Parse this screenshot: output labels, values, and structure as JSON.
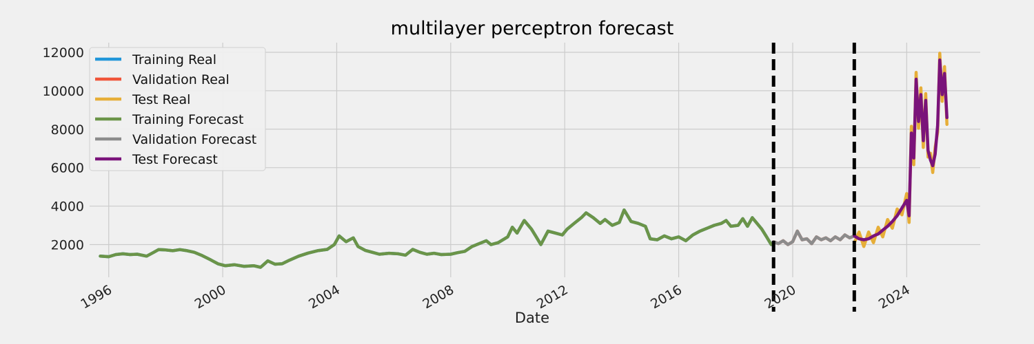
{
  "chart_data": {
    "type": "line",
    "title": "multilayer perceptron forecast",
    "xlabel": "Date",
    "ylabel": "",
    "xlim": [
      "1995-05-01",
      "2026-08-01"
    ],
    "ylim": [
      300,
      12500
    ],
    "xticks": [
      "1996",
      "2000",
      "2004",
      "2008",
      "2012",
      "2016",
      "2020",
      "2024"
    ],
    "yticks": [
      2000,
      4000,
      6000,
      8000,
      10000,
      12000
    ],
    "grid": true,
    "legend_position": "top-left",
    "vlines": [
      "2019-05-01",
      "2022-03-01"
    ],
    "series": [
      {
        "name": "Training Real",
        "color": "#2196d9",
        "key": "train"
      },
      {
        "name": "Validation Real",
        "color": "#f0553a",
        "key": "val"
      },
      {
        "name": "Test Real",
        "color": "#e6ae38",
        "key": "test"
      },
      {
        "name": "Training Forecast",
        "color": "#6b9448",
        "key": "train"
      },
      {
        "name": "Validation Forecast",
        "color": "#8c8c8c",
        "key": "val"
      },
      {
        "name": "Test Forecast",
        "color": "#7a137a",
        "key": "test"
      }
    ],
    "data": {
      "train": [
        [
          "1995-09-15",
          1400
        ],
        [
          "1996-01-01",
          1370
        ],
        [
          "1996-04-01",
          1480
        ],
        [
          "1996-07-01",
          1520
        ],
        [
          "1996-10-01",
          1480
        ],
        [
          "1997-01-01",
          1500
        ],
        [
          "1997-05-01",
          1400
        ],
        [
          "1997-08-01",
          1600
        ],
        [
          "1997-10-01",
          1740
        ],
        [
          "1998-01-01",
          1720
        ],
        [
          "1998-04-01",
          1680
        ],
        [
          "1998-07-01",
          1740
        ],
        [
          "1998-10-01",
          1680
        ],
        [
          "1999-01-01",
          1600
        ],
        [
          "1999-04-01",
          1450
        ],
        [
          "1999-08-01",
          1200
        ],
        [
          "1999-11-01",
          1000
        ],
        [
          "2000-02-01",
          900
        ],
        [
          "2000-06-01",
          950
        ],
        [
          "2000-10-01",
          870
        ],
        [
          "2001-02-01",
          900
        ],
        [
          "2001-05-01",
          820
        ],
        [
          "2001-08-01",
          1150
        ],
        [
          "2001-11-01",
          980
        ],
        [
          "2002-02-01",
          1000
        ],
        [
          "2002-05-01",
          1180
        ],
        [
          "2002-09-01",
          1400
        ],
        [
          "2003-01-01",
          1560
        ],
        [
          "2003-05-01",
          1680
        ],
        [
          "2003-09-01",
          1750
        ],
        [
          "2003-12-01",
          2000
        ],
        [
          "2004-02-01",
          2450
        ],
        [
          "2004-05-01",
          2150
        ],
        [
          "2004-08-01",
          2350
        ],
        [
          "2004-10-01",
          1900
        ],
        [
          "2005-01-01",
          1700
        ],
        [
          "2005-04-01",
          1600
        ],
        [
          "2005-07-01",
          1500
        ],
        [
          "2005-11-01",
          1550
        ],
        [
          "2006-03-01",
          1520
        ],
        [
          "2006-06-01",
          1450
        ],
        [
          "2006-09-01",
          1750
        ],
        [
          "2006-12-01",
          1600
        ],
        [
          "2007-03-01",
          1500
        ],
        [
          "2007-06-01",
          1550
        ],
        [
          "2007-09-01",
          1480
        ],
        [
          "2008-01-01",
          1500
        ],
        [
          "2008-04-01",
          1580
        ],
        [
          "2008-07-01",
          1650
        ],
        [
          "2008-10-01",
          1900
        ],
        [
          "2009-01-01",
          2050
        ],
        [
          "2009-04-01",
          2200
        ],
        [
          "2009-06-01",
          2000
        ],
        [
          "2009-09-01",
          2100
        ],
        [
          "2010-01-01",
          2400
        ],
        [
          "2010-03-01",
          2900
        ],
        [
          "2010-05-01",
          2600
        ],
        [
          "2010-08-01",
          3250
        ],
        [
          "2010-11-01",
          2800
        ],
        [
          "2011-01-01",
          2400
        ],
        [
          "2011-03-01",
          2000
        ],
        [
          "2011-06-01",
          2700
        ],
        [
          "2011-09-01",
          2600
        ],
        [
          "2011-12-01",
          2500
        ],
        [
          "2012-02-01",
          2800
        ],
        [
          "2012-05-01",
          3100
        ],
        [
          "2012-08-01",
          3400
        ],
        [
          "2012-10-01",
          3650
        ],
        [
          "2013-01-01",
          3400
        ],
        [
          "2013-04-01",
          3100
        ],
        [
          "2013-06-01",
          3300
        ],
        [
          "2013-09-01",
          3000
        ],
        [
          "2013-12-01",
          3150
        ],
        [
          "2014-02-01",
          3800
        ],
        [
          "2014-05-01",
          3200
        ],
        [
          "2014-08-01",
          3100
        ],
        [
          "2014-11-01",
          2950
        ],
        [
          "2015-01-01",
          2300
        ],
        [
          "2015-04-01",
          2250
        ],
        [
          "2015-07-01",
          2450
        ],
        [
          "2015-10-01",
          2300
        ],
        [
          "2016-01-01",
          2400
        ],
        [
          "2016-04-01",
          2200
        ],
        [
          "2016-07-01",
          2500
        ],
        [
          "2016-10-01",
          2700
        ],
        [
          "2017-01-01",
          2850
        ],
        [
          "2017-04-01",
          3000
        ],
        [
          "2017-07-01",
          3100
        ],
        [
          "2017-09-01",
          3250
        ],
        [
          "2017-11-01",
          2950
        ],
        [
          "2018-02-01",
          3000
        ],
        [
          "2018-04-01",
          3350
        ],
        [
          "2018-06-01",
          2950
        ],
        [
          "2018-08-01",
          3400
        ],
        [
          "2018-10-01",
          3100
        ],
        [
          "2018-12-01",
          2800
        ],
        [
          "2019-02-01",
          2400
        ],
        [
          "2019-04-01",
          2000
        ],
        [
          "2019-05-01",
          2100
        ]
      ],
      "val": [
        [
          "2019-05-01",
          2150
        ],
        [
          "2019-07-01",
          2050
        ],
        [
          "2019-09-01",
          2200
        ],
        [
          "2019-11-01",
          2000
        ],
        [
          "2020-01-01",
          2150
        ],
        [
          "2020-03-01",
          2700
        ],
        [
          "2020-05-01",
          2250
        ],
        [
          "2020-07-01",
          2300
        ],
        [
          "2020-09-01",
          2050
        ],
        [
          "2020-11-01",
          2400
        ],
        [
          "2021-01-01",
          2250
        ],
        [
          "2021-03-01",
          2350
        ],
        [
          "2021-05-01",
          2200
        ],
        [
          "2021-07-01",
          2400
        ],
        [
          "2021-09-01",
          2250
        ],
        [
          "2021-11-01",
          2500
        ],
        [
          "2022-01-01",
          2350
        ],
        [
          "2022-03-01",
          2450
        ]
      ],
      "test": [
        [
          "2022-03-01",
          2450
        ],
        [
          "2022-05-01",
          2300
        ],
        [
          "2022-07-01",
          2250
        ],
        [
          "2022-09-01",
          2300
        ],
        [
          "2022-11-01",
          2450
        ],
        [
          "2023-01-01",
          2550
        ],
        [
          "2023-03-01",
          2750
        ],
        [
          "2023-05-01",
          2950
        ],
        [
          "2023-07-01",
          3200
        ],
        [
          "2023-09-01",
          3500
        ],
        [
          "2023-11-01",
          3900
        ],
        [
          "2024-01-01",
          4300
        ],
        [
          "2024-02-01",
          3500
        ],
        [
          "2024-03-01",
          7800
        ],
        [
          "2024-04-01",
          6500
        ],
        [
          "2024-05-01",
          10600
        ],
        [
          "2024-06-01",
          8400
        ],
        [
          "2024-07-01",
          9800
        ],
        [
          "2024-08-01",
          7400
        ],
        [
          "2024-09-01",
          9500
        ],
        [
          "2024-10-01",
          6900
        ],
        [
          "2024-11-01",
          6400
        ],
        [
          "2024-12-01",
          6100
        ],
        [
          "2025-01-01",
          6700
        ],
        [
          "2025-02-01",
          8200
        ],
        [
          "2025-03-01",
          11600
        ],
        [
          "2025-04-01",
          9800
        ],
        [
          "2025-05-01",
          10900
        ],
        [
          "2025-06-01",
          8600
        ]
      ]
    }
  }
}
